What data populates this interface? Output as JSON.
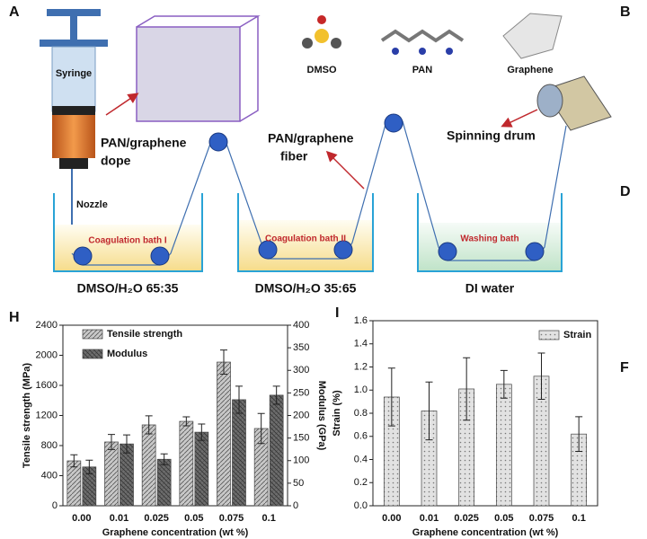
{
  "panels": {
    "a": "A",
    "b": "B",
    "d": "D",
    "f": "F"
  },
  "diagram": {
    "syringe": "Syringe",
    "nozzle": "Nozzle",
    "dope": [
      "PAN/graphene",
      "dope"
    ],
    "fiber": [
      "PAN/graphene",
      "fiber"
    ],
    "dmso": "DMSO",
    "pan": "PAN",
    "graphene": "Graphene",
    "drum": "Spinning drum",
    "baths": [
      "Coagulation bath I",
      "Coagulation bath II",
      "Washing bath"
    ],
    "solutions": [
      "DMSO/H₂O 65:35",
      "DMSO/H₂O 35:65",
      "DI water"
    ]
  },
  "chart_data": [
    {
      "type": "bar",
      "panel": "H",
      "x_label": "Graphene concentration (wt %)",
      "y_label": "Tensile strength (MPa)",
      "y2_label": "Modulus (GPa)",
      "categories": [
        "0.00",
        "0.01",
        "0.025",
        "0.05",
        "0.075",
        "0.1"
      ],
      "series": [
        {
          "name": "Tensile strength",
          "color": "#c8c8c8",
          "values": [
            597,
            848,
            1075,
            1122,
            1910,
            1027
          ],
          "errors": [
            80,
            100,
            120,
            60,
            160,
            200
          ]
        },
        {
          "name": "Modulus",
          "color": "#6e6e6e",
          "axis": "y2",
          "values": [
            86,
            137,
            103,
            163,
            235,
            245
          ],
          "errors": [
            15,
            20,
            12,
            18,
            30,
            20
          ]
        }
      ],
      "ylim": [
        0,
        2400
      ],
      "yticks": [
        0,
        400,
        800,
        1200,
        1600,
        2000,
        2400
      ],
      "y2lim": [
        0,
        400
      ],
      "y2ticks": [
        0,
        50,
        100,
        150,
        200,
        250,
        300,
        350,
        400
      ]
    },
    {
      "type": "bar",
      "panel": "I",
      "x_label": "Graphene concentration (wt %)",
      "y_label": "Strain (%)",
      "categories": [
        "0.00",
        "0.01",
        "0.025",
        "0.05",
        "0.075",
        "0.1"
      ],
      "series": [
        {
          "name": "Strain",
          "color": "#e2e2e2",
          "values": [
            0.94,
            0.82,
            1.01,
            1.05,
            1.12,
            0.62
          ],
          "errors": [
            0.25,
            0.25,
            0.27,
            0.12,
            0.2,
            0.15
          ]
        }
      ],
      "ylim": [
        0,
        1.6
      ],
      "yticks": [
        {
          "value": 0,
          "label": "0.0"
        },
        0.2,
        0.4,
        0.6,
        0.8,
        {
          "value": 1,
          "label": "1.0"
        },
        1.2,
        1.4,
        1.6
      ]
    }
  ]
}
